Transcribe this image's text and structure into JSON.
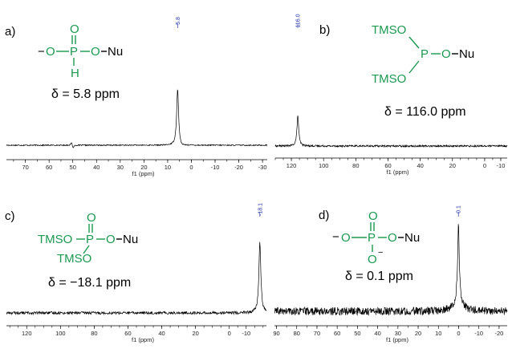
{
  "chart_data": [
    {
      "type": "line",
      "panel": "a)",
      "structure_atoms": [
        "O",
        "P",
        "O",
        "O",
        "H",
        "Nu"
      ],
      "structure_charge": "−",
      "shift_text": "δ = 5.8 ppm",
      "peak_label": "5.8",
      "xlabel": "f1 (ppm)",
      "xlim": [
        78,
        -32
      ],
      "x_ticks": [
        70,
        60,
        50,
        40,
        30,
        20,
        10,
        0,
        -10,
        -20,
        -30
      ],
      "tick_labels": [
        "70",
        "60",
        "50",
        "40",
        "30",
        "20",
        "10",
        "0",
        "-10",
        "-20",
        "-30"
      ],
      "peaks": [
        {
          "x": 5.8,
          "height": 1.0
        },
        {
          "x": 50.5,
          "height": 0.05
        }
      ],
      "noise": 0.01
    },
    {
      "type": "line",
      "panel": "b)",
      "structure_atoms": [
        "TMSO",
        "P",
        "O",
        "TMSO",
        "Nu"
      ],
      "shift_text": "δ = 116.0 ppm",
      "peak_label": "116.0",
      "xlabel": "f1 (ppm)",
      "xlim": [
        130,
        -14
      ],
      "x_ticks": [
        120,
        100,
        80,
        60,
        40,
        20,
        0,
        -10
      ],
      "tick_labels": [
        "120",
        "100",
        "80",
        "60",
        "40",
        "20",
        "0",
        "-10"
      ],
      "peaks": [
        {
          "x": 116.0,
          "height": 1.0
        }
      ],
      "noise": 0.03
    },
    {
      "type": "line",
      "panel": "c)",
      "structure_atoms": [
        "O",
        "TMSO",
        "P",
        "O",
        "TMSO",
        "Nu"
      ],
      "shift_text": "δ = −18.1 ppm",
      "peak_label": "-18.1",
      "xlabel": "f1 (ppm)",
      "xlim": [
        132,
        -22
      ],
      "x_ticks": [
        120,
        100,
        80,
        60,
        40,
        20,
        0,
        -10
      ],
      "tick_labels": [
        "120",
        "100",
        "80",
        "60",
        "40",
        "20",
        "0",
        "-10"
      ],
      "peaks": [
        {
          "x": -18.1,
          "height": 1.0
        }
      ],
      "noise": 0.02
    },
    {
      "type": "line",
      "panel": "d)",
      "structure_atoms": [
        "O",
        "O",
        "P",
        "O",
        "O",
        "Nu"
      ],
      "structure_charges": [
        "−",
        "−"
      ],
      "shift_text": "δ = 0.1 ppm",
      "peak_label": "0.1",
      "xlabel": "f1 (ppm)",
      "xlim": [
        91,
        -24
      ],
      "x_ticks": [
        90,
        80,
        70,
        60,
        50,
        40,
        30,
        20,
        10,
        0,
        -10,
        -20
      ],
      "tick_labels": [
        "90",
        "80",
        "70",
        "60",
        "50",
        "40",
        "30",
        "20",
        "10",
        "0",
        "-10",
        "-20"
      ],
      "peaks": [
        {
          "x": 0.1,
          "height": 1.0
        }
      ],
      "noise": 0.05
    }
  ],
  "colors": {
    "structure": "#1a9a50",
    "peak_label": "#2233aa",
    "trace": "#000000"
  }
}
